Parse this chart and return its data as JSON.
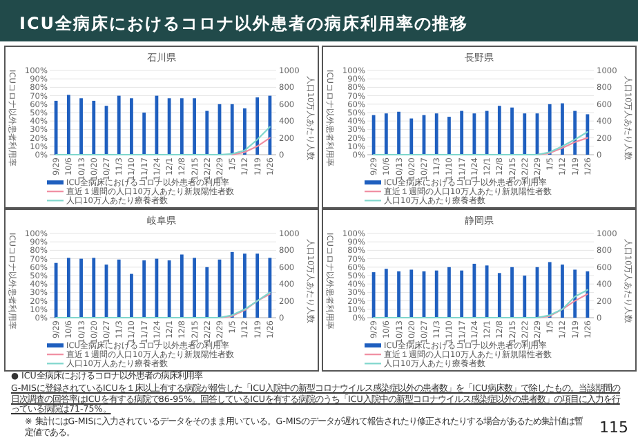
{
  "chart_data": [
    {
      "type": "bar",
      "title": "石川県",
      "annotations": [
        "ICU全病床におけるコロナ以外患者の病床利用率の推移"
      ],
      "ylabel": "ICUコロナ以外患者利用率",
      "y2label": "人口10万人あたり人数",
      "categories": [
        "9/29",
        "10/6",
        "10/13",
        "10/20",
        "10/27",
        "11/3",
        "11/10",
        "11/17",
        "11/24",
        "12/1",
        "12/8",
        "12/15",
        "12/22",
        "12/29",
        "1/5",
        "1/12",
        "1/19",
        "1/26"
      ],
      "ylim": [
        0,
        100
      ],
      "yticks": [
        {
          "value": 0,
          "label": "0%"
        },
        {
          "value": 10,
          "label": "10%"
        },
        {
          "value": 20,
          "label": "20%"
        },
        {
          "value": 30,
          "label": "30%"
        },
        {
          "value": 40,
          "label": "40%"
        },
        {
          "value": 50,
          "label": "50%"
        },
        {
          "value": 60,
          "label": "60%"
        },
        {
          "value": 70,
          "label": "70%"
        },
        {
          "value": 80,
          "label": "80%"
        },
        {
          "value": 90,
          "label": "90%"
        },
        {
          "value": 100,
          "label": "100%"
        }
      ],
      "y2lim": [
        0,
        1000
      ],
      "y2ticks": [
        0,
        200,
        400,
        600,
        800,
        1000
      ],
      "grid": "y",
      "legend": "bottom",
      "series": [
        {
          "name": "ICU全病床におけるコロナ以外患者の利用率",
          "color": "#1f5fbf",
          "values": [
            64,
            71,
            67,
            64,
            58,
            70,
            67,
            50,
            70,
            67,
            67,
            67,
            52,
            60,
            60,
            55,
            68,
            70
          ]
        },
        {
          "name": "直近１週間の人口10万人あたり新規陽性者数",
          "type": "line",
          "axis": "y2",
          "color": "#f08ca0",
          "values": [
            null,
            null,
            null,
            null,
            null,
            null,
            null,
            null,
            null,
            null,
            null,
            null,
            null,
            null,
            0,
            30,
            100,
            200
          ]
        },
        {
          "name": "人口10万人あたり療養者数",
          "type": "line",
          "axis": "y2",
          "color": "#7fd6cc",
          "values": [
            0,
            0,
            0,
            0,
            0,
            0,
            0,
            0,
            0,
            0,
            0,
            0,
            0,
            0,
            10,
            50,
            180,
            330
          ]
        }
      ]
    },
    {
      "type": "bar",
      "title": "長野県",
      "ylabel": "ICUコロナ以外患者利用率",
      "y2label": "人口10万人あたり人数",
      "categories": [
        "9/29",
        "10/6",
        "10/13",
        "10/20",
        "10/27",
        "11/3",
        "11/10",
        "11/17",
        "11/24",
        "12/1",
        "12/8",
        "12/15",
        "12/22",
        "12/29",
        "1/5",
        "1/12",
        "1/19",
        "1/26"
      ],
      "ylim": [
        0,
        100
      ],
      "yticks": [
        {
          "value": 0,
          "label": "0%"
        },
        {
          "value": 10,
          "label": "10%"
        },
        {
          "value": 20,
          "label": "20%"
        },
        {
          "value": 30,
          "label": "30%"
        },
        {
          "value": 40,
          "label": "40%"
        },
        {
          "value": 50,
          "label": "50%"
        },
        {
          "value": 60,
          "label": "60%"
        },
        {
          "value": 70,
          "label": "70%"
        },
        {
          "value": 80,
          "label": "80%"
        },
        {
          "value": 90,
          "label": "90%"
        },
        {
          "value": 100,
          "label": "100%"
        }
      ],
      "y2lim": [
        0,
        1000
      ],
      "y2ticks": [
        0,
        200,
        400,
        600,
        800,
        1000
      ],
      "grid": "y",
      "legend": "bottom",
      "series": [
        {
          "name": "ICU全病床におけるコロナ以外患者の利用率",
          "color": "#1f5fbf",
          "values": [
            47,
            49,
            51,
            43,
            47,
            49,
            45,
            52,
            49,
            52,
            58,
            56,
            49,
            49,
            60,
            61,
            52,
            48
          ]
        },
        {
          "name": "直近１週間の人口10万人あたり新規陽性者数",
          "type": "line",
          "axis": "y2",
          "color": "#f08ca0",
          "values": [
            null,
            null,
            null,
            null,
            null,
            null,
            null,
            null,
            null,
            null,
            null,
            null,
            null,
            0,
            20,
            80,
            150,
            200
          ]
        },
        {
          "name": "人口10万人あたり療養者数",
          "type": "line",
          "axis": "y2",
          "color": "#7fd6cc",
          "values": [
            0,
            0,
            0,
            0,
            0,
            0,
            0,
            0,
            0,
            0,
            0,
            0,
            0,
            0,
            30,
            100,
            180,
            270
          ]
        }
      ]
    },
    {
      "type": "bar",
      "title": "岐阜県",
      "ylabel": "ICUコロナ以外患者利用率",
      "y2label": "人口10万人あたり人数",
      "categories": [
        "9/29",
        "10/6",
        "10/13",
        "10/20",
        "10/27",
        "11/3",
        "11/10",
        "11/17",
        "11/24",
        "12/1",
        "12/8",
        "12/15",
        "12/22",
        "12/29",
        "1/5",
        "1/12",
        "1/19",
        "1/26"
      ],
      "ylim": [
        0,
        100
      ],
      "yticks": [
        {
          "value": 0,
          "label": "0%"
        },
        {
          "value": 10,
          "label": "10%"
        },
        {
          "value": 20,
          "label": "20%"
        },
        {
          "value": 30,
          "label": "30%"
        },
        {
          "value": 40,
          "label": "40%"
        },
        {
          "value": 50,
          "label": "50%"
        },
        {
          "value": 60,
          "label": "60%"
        },
        {
          "value": 70,
          "label": "70%"
        },
        {
          "value": 80,
          "label": "80%"
        },
        {
          "value": 90,
          "label": "90%"
        },
        {
          "value": 100,
          "label": "100%"
        }
      ],
      "y2lim": [
        0,
        1000
      ],
      "y2ticks": [
        0,
        200,
        400,
        600,
        800,
        1000
      ],
      "grid": "y",
      "legend": "bottom",
      "series": [
        {
          "name": "ICU全病床におけるコロナ以外患者の利用率",
          "color": "#1f5fbf",
          "values": [
            65,
            71,
            70,
            71,
            63,
            69,
            52,
            68,
            70,
            68,
            75,
            71,
            60,
            69,
            78,
            76,
            76,
            71
          ]
        },
        {
          "name": "直近１週間の人口10万人あたり新規陽性者数",
          "type": "line",
          "axis": "y2",
          "color": "#f08ca0",
          "values": [
            null,
            null,
            null,
            null,
            null,
            null,
            null,
            null,
            null,
            null,
            null,
            null,
            null,
            0,
            20,
            90,
            200,
            280
          ]
        },
        {
          "name": "人口10万人あたり療養者数",
          "type": "line",
          "axis": "y2",
          "color": "#7fd6cc",
          "values": [
            0,
            0,
            0,
            0,
            0,
            0,
            0,
            0,
            0,
            0,
            0,
            0,
            0,
            0,
            30,
            100,
            200,
            300
          ]
        }
      ]
    },
    {
      "type": "bar",
      "title": "静岡県",
      "annotations": [
        "● ICU全病床におけるコロナ以外患者の病床利用率",
        "G-MISに登録されているICUを１床以上有する病院が報告した「ICU入院中の新型コロナウイルス感染症以外の患者数」を「ICU病床数」で除したもの。当該期間の日次調査の回答率はICUを有する病院で86-95%。回答しているICUを有する病院のうち「ICU入院中の新型コロナウイルス感染症以外の患者数」の項目に入力を行っている病院は71-75%。",
        "※ 集計にはG-MISに入力されているデータをそのまま用いている。G-MISのデータが遅れて報告されたり修正されたりする場合があるため集計値は暫定値である。",
        "115"
      ],
      "ylabel": "ICUコロナ以外患者利用率",
      "y2label": "人口10万人あたり人数",
      "categories": [
        "9/29",
        "10/6",
        "10/13",
        "10/20",
        "10/27",
        "11/3",
        "11/10",
        "11/17",
        "11/24",
        "12/1",
        "12/8",
        "12/15",
        "12/22",
        "12/29",
        "1/5",
        "1/12",
        "1/19",
        "1/26"
      ],
      "ylim": [
        0,
        100
      ],
      "yticks": [
        {
          "value": 0,
          "label": "0%"
        },
        {
          "value": 10,
          "label": "10%"
        },
        {
          "value": 20,
          "label": "20%"
        },
        {
          "value": 30,
          "label": "30%"
        },
        {
          "value": 40,
          "label": "40%"
        },
        {
          "value": 50,
          "label": "50%"
        },
        {
          "value": 60,
          "label": "60%"
        },
        {
          "value": 70,
          "label": "70%"
        },
        {
          "value": 80,
          "label": "80%"
        },
        {
          "value": 90,
          "label": "90%"
        },
        {
          "value": 100,
          "label": "100%"
        }
      ],
      "y2lim": [
        0,
        1000
      ],
      "y2ticks": [
        0,
        200,
        400,
        600,
        800,
        1000
      ],
      "grid": "y",
      "legend": "bottom",
      "series": [
        {
          "name": "ICU全病床におけるコロナ以外患者の利用率",
          "color": "#1f5fbf",
          "values": [
            54,
            58,
            55,
            57,
            55,
            56,
            60,
            56,
            64,
            62,
            53,
            60,
            50,
            60,
            66,
            63,
            57,
            55
          ]
        },
        {
          "name": "直近１週間の人口10万人あたり新規陽性者数",
          "type": "line",
          "axis": "y2",
          "color": "#f08ca0",
          "values": [
            null,
            null,
            null,
            null,
            null,
            null,
            null,
            null,
            null,
            null,
            null,
            null,
            null,
            0,
            20,
            100,
            200,
            280
          ]
        },
        {
          "name": "人口10万人あたり療養者数",
          "type": "line",
          "axis": "y2",
          "color": "#7fd6cc",
          "values": [
            0,
            0,
            0,
            0,
            0,
            0,
            0,
            0,
            0,
            0,
            0,
            0,
            0,
            0,
            30,
            100,
            250,
            330
          ]
        }
      ]
    }
  ]
}
